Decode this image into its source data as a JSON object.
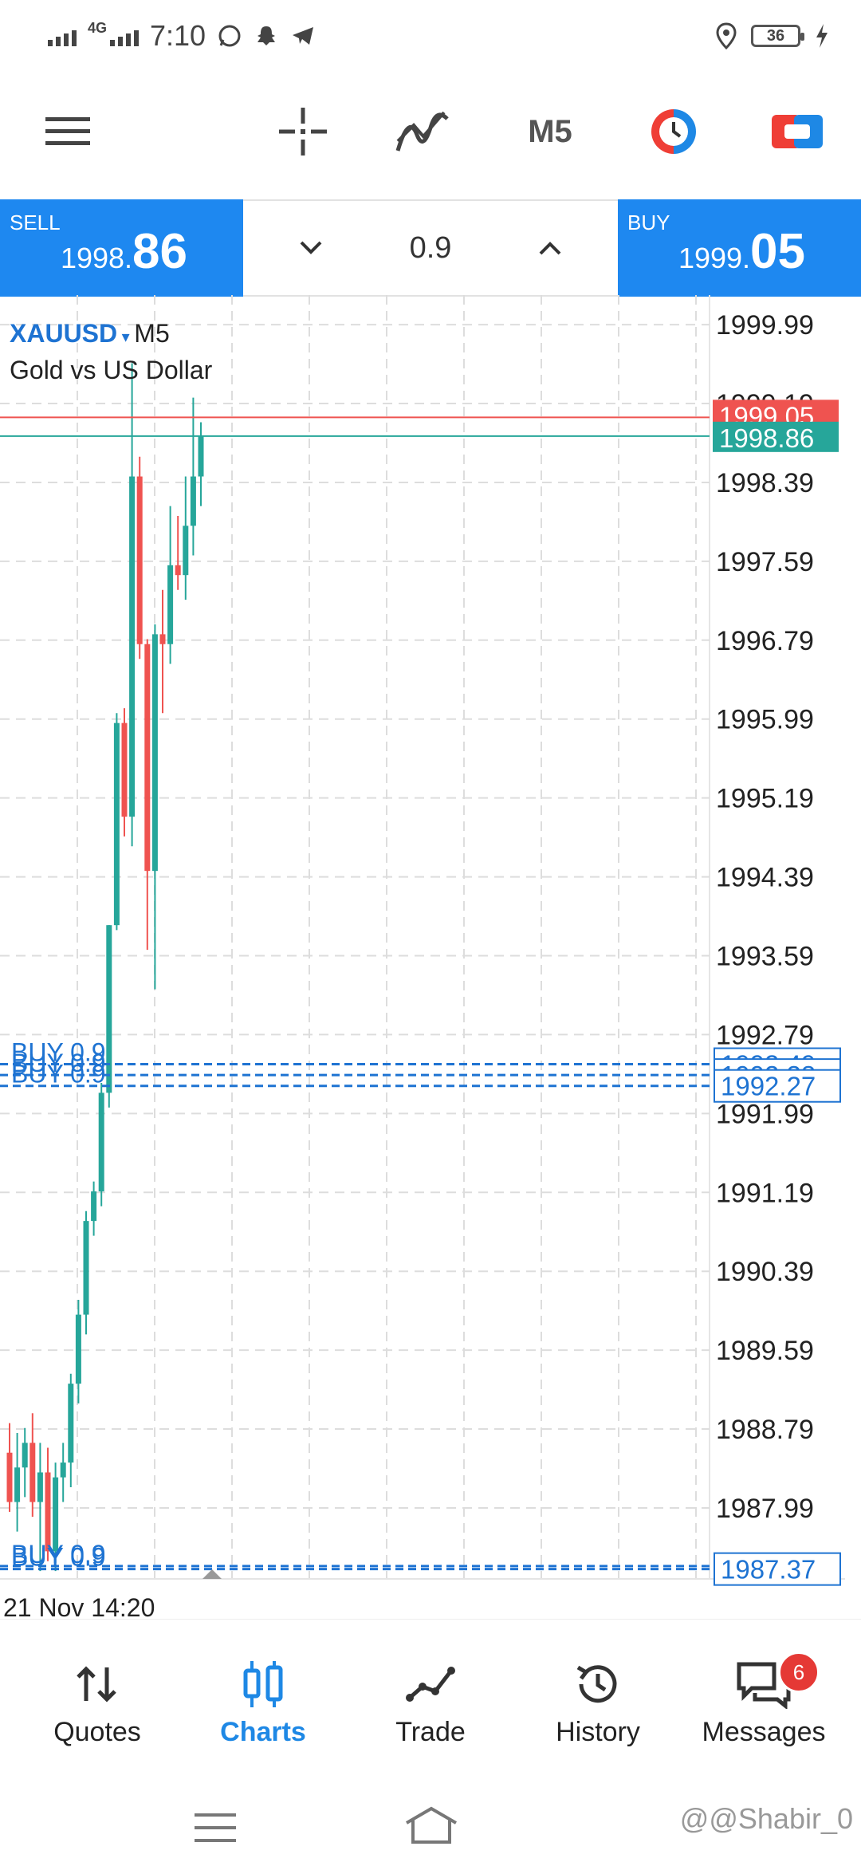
{
  "status_bar": {
    "network": "4G",
    "time": "7:10",
    "battery": "36",
    "icons": [
      "signal-icon",
      "whatsapp-icon",
      "snapchat-icon",
      "telegram-icon",
      "location-icon",
      "battery-icon",
      "charging-icon"
    ]
  },
  "toolbar": {
    "menu_icon": "menu-icon",
    "crosshair_icon": "crosshair-icon",
    "indicators_icon": "indicators-icon",
    "timeframe": "M5",
    "trade_icon": "one-click-trading-icon",
    "toggle_icon": "chart-toggle-icon"
  },
  "trade_bar": {
    "sell_label": "SELL",
    "sell_price_small": "1998.",
    "sell_price_big": "86",
    "buy_label": "BUY",
    "buy_price_small": "1999.",
    "buy_price_big": "05",
    "lot": "0.9",
    "decrease_icon": "chevron-down-icon",
    "increase_icon": "chevron-up-icon"
  },
  "chart": {
    "symbol": "XAUUSD",
    "timeframe": "M5",
    "description": "Gold vs US Dollar",
    "date_label": "21 Nov 14:20"
  },
  "chart_data": {
    "type": "candlestick",
    "y_axis_labels": [
      "1999.99",
      "1999.19",
      "1998.39",
      "1997.59",
      "1996.79",
      "1995.99",
      "1995.19",
      "1994.39",
      "1993.59",
      "1992.79",
      "1991.99",
      "1991.19",
      "1990.39",
      "1989.59",
      "1988.79",
      "1987.99"
    ],
    "ylim": [
      1987.27,
      2000.29
    ],
    "ask_price": "1999.05",
    "bid_price": "1998.86",
    "order_lines": [
      {
        "label": "BUY 0.9",
        "price": 1992.49,
        "price_label": "1992.49"
      },
      {
        "label": "BUY 0.9",
        "price": 1992.38,
        "price_label": "1992.38"
      },
      {
        "label": "BUY 0.9",
        "price": 1992.27,
        "price_label": "1992.27"
      },
      {
        "label": "BUY 0.9",
        "price": 1987.4,
        "price_label": ""
      },
      {
        "label": "BUY 0.9",
        "price": 1987.37,
        "price_label": "1987.37"
      }
    ],
    "candles": [
      {
        "o": 1988.55,
        "h": 1988.85,
        "l": 1987.95,
        "c": 1988.05
      },
      {
        "o": 1988.05,
        "h": 1988.75,
        "l": 1987.75,
        "c": 1988.4
      },
      {
        "o": 1988.4,
        "h": 1988.8,
        "l": 1988.1,
        "c": 1988.65
      },
      {
        "o": 1988.65,
        "h": 1988.95,
        "l": 1987.9,
        "c": 1988.05
      },
      {
        "o": 1988.05,
        "h": 1988.65,
        "l": 1987.35,
        "c": 1988.35
      },
      {
        "o": 1988.35,
        "h": 1988.6,
        "l": 1987.45,
        "c": 1987.55
      },
      {
        "o": 1987.55,
        "h": 1988.45,
        "l": 1987.35,
        "c": 1988.3
      },
      {
        "o": 1988.3,
        "h": 1988.65,
        "l": 1988.05,
        "c": 1988.45
      },
      {
        "o": 1988.45,
        "h": 1989.35,
        "l": 1988.2,
        "c": 1989.25
      },
      {
        "o": 1989.25,
        "h": 1990.1,
        "l": 1989.05,
        "c": 1989.95
      },
      {
        "o": 1989.95,
        "h": 1991.0,
        "l": 1989.75,
        "c": 1990.9
      },
      {
        "o": 1990.9,
        "h": 1991.3,
        "l": 1990.75,
        "c": 1991.2
      },
      {
        "o": 1991.2,
        "h": 1992.3,
        "l": 1991.05,
        "c": 1992.2
      },
      {
        "o": 1992.2,
        "h": 1993.9,
        "l": 1992.05,
        "c": 1993.9
      },
      {
        "o": 1993.9,
        "h": 1996.05,
        "l": 1993.85,
        "c": 1995.95
      },
      {
        "o": 1995.95,
        "h": 1996.1,
        "l": 1994.8,
        "c": 1995.0
      },
      {
        "o": 1995.0,
        "h": 1999.6,
        "l": 1994.7,
        "c": 1998.45
      },
      {
        "o": 1998.45,
        "h": 1998.65,
        "l": 1996.6,
        "c": 1996.75
      },
      {
        "o": 1996.75,
        "h": 1996.8,
        "l": 1993.65,
        "c": 1994.45
      },
      {
        "o": 1994.45,
        "h": 1996.95,
        "l": 1993.25,
        "c": 1996.85
      },
      {
        "o": 1996.85,
        "h": 1997.3,
        "l": 1996.05,
        "c": 1996.75
      },
      {
        "o": 1996.75,
        "h": 1998.15,
        "l": 1996.55,
        "c": 1997.55
      },
      {
        "o": 1997.55,
        "h": 1998.05,
        "l": 1997.3,
        "c": 1997.45
      },
      {
        "o": 1997.45,
        "h": 1998.45,
        "l": 1997.2,
        "c": 1997.95
      },
      {
        "o": 1997.95,
        "h": 1999.25,
        "l": 1997.65,
        "c": 1998.45
      },
      {
        "o": 1998.45,
        "h": 1999.0,
        "l": 1998.15,
        "c": 1998.86
      }
    ],
    "colors": {
      "up": "#26a69a",
      "down": "#ef5350",
      "ask": "#ef5350",
      "bid": "#26a69a",
      "order": "#1e73d2",
      "grid": "#dddddd"
    }
  },
  "bottom_nav": [
    {
      "label": "Quotes",
      "icon": "quotes-icon",
      "active": false
    },
    {
      "label": "Charts",
      "icon": "charts-icon",
      "active": true
    },
    {
      "label": "Trade",
      "icon": "trade-icon",
      "active": false
    },
    {
      "label": "History",
      "icon": "history-icon",
      "active": false
    },
    {
      "label": "Messages",
      "icon": "messages-icon",
      "active": false,
      "badge": "6"
    }
  ],
  "system_nav": {
    "menu": "menu-icon",
    "home": "home-icon"
  },
  "watermark": "@@Shabir_0"
}
